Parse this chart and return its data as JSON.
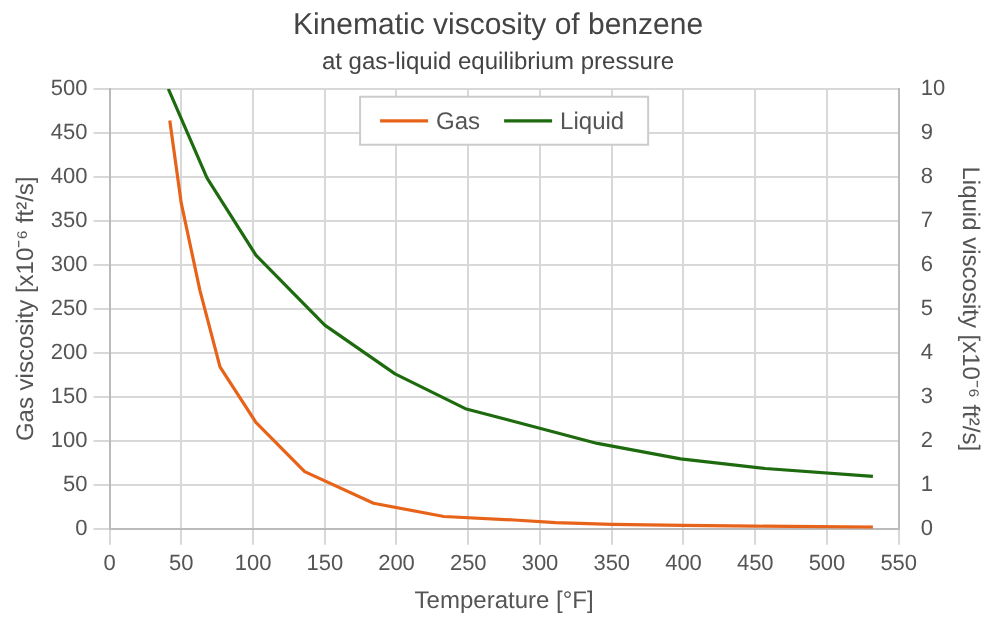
{
  "chart_data": {
    "type": "line",
    "title": "Kinematic viscosity of benzene",
    "subtitle": "at gas-liquid equilibrium pressure",
    "xlabel": "Temperature [°F]",
    "ylabel": "Gas viscosity [x10⁻⁶ ft²/s]",
    "y2label": "Liquid viscosity [x10⁻⁶ ft²/s]",
    "series": [
      {
        "name": "Gas",
        "color": "#e8631a",
        "x": [
          42,
          50,
          63,
          77,
          102,
          136,
          184,
          233,
          282,
          311,
          350,
          400,
          450,
          532
        ],
        "values": [
          464,
          370,
          271,
          184,
          121,
          65,
          29,
          14,
          10,
          7,
          5,
          4,
          3,
          2
        ]
      },
      {
        "name": "Liquid",
        "color": "#1e6b0f",
        "axis": "y2",
        "x": [
          41,
          68,
          102,
          150,
          199,
          248,
          282,
          340,
          398,
          457,
          532
        ],
        "values": [
          10.0,
          7.97,
          6.22,
          4.63,
          3.52,
          2.73,
          2.44,
          1.94,
          1.59,
          1.37,
          1.19
        ]
      }
    ],
    "xlim": [
      0,
      550
    ],
    "xticks": [
      0,
      50,
      100,
      150,
      200,
      250,
      300,
      350,
      400,
      450,
      500,
      550
    ],
    "ylim": [
      0,
      500
    ],
    "yticks": [
      0,
      50,
      100,
      150,
      200,
      250,
      300,
      350,
      400,
      450,
      500
    ],
    "y2lim": [
      0,
      10
    ],
    "y2ticks": [
      0,
      1,
      2,
      3,
      4,
      5,
      6,
      7,
      8,
      9,
      10
    ],
    "grid": true,
    "legend": "top",
    "marker": "none",
    "line_style": "solid"
  }
}
